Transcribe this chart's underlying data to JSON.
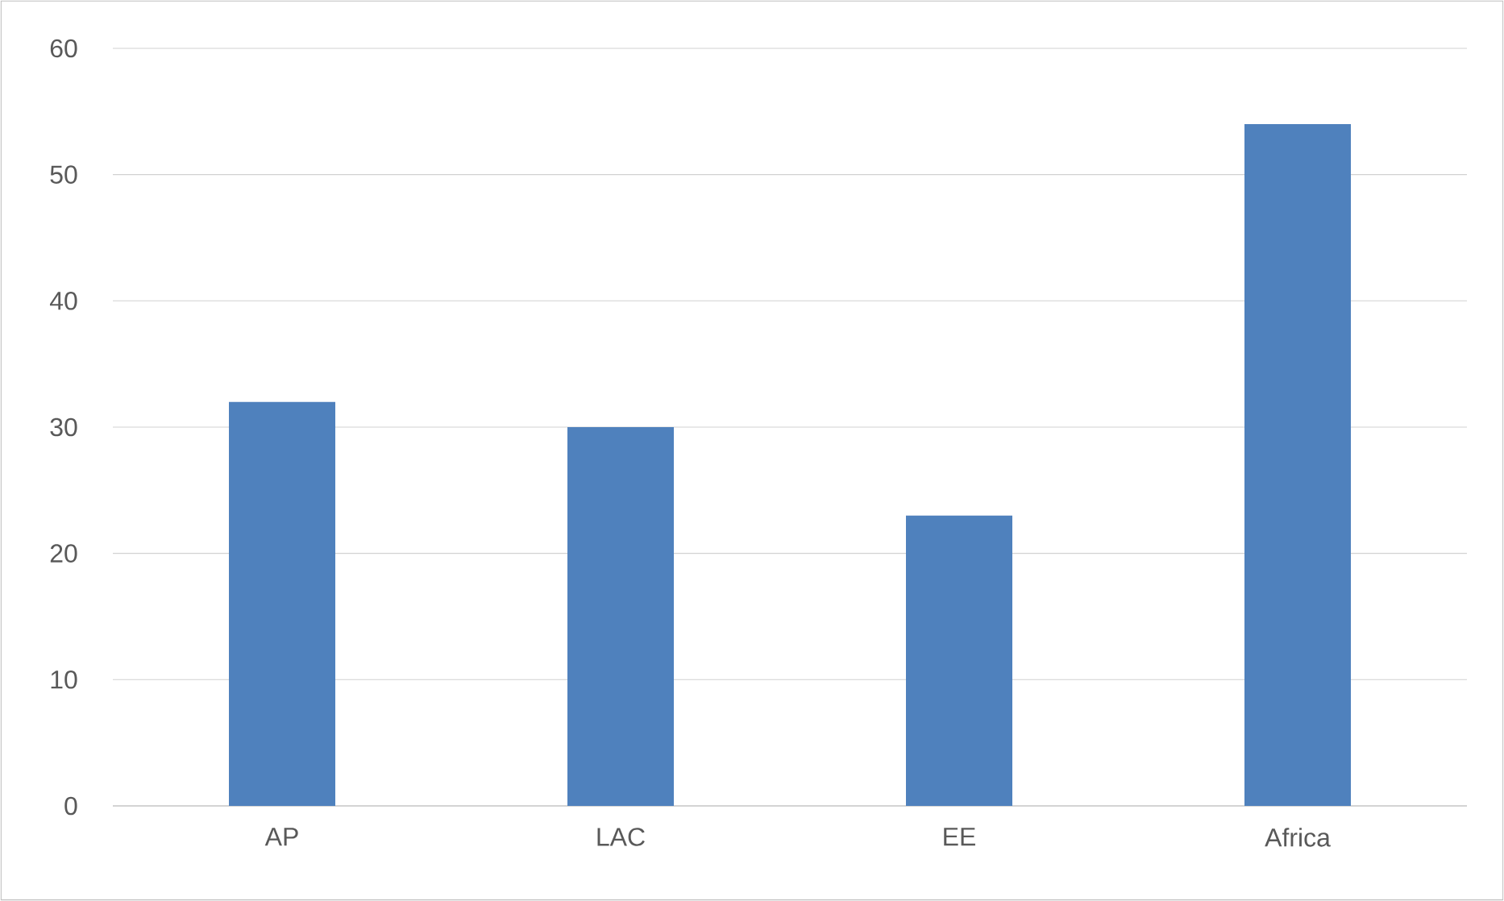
{
  "chart_data": {
    "type": "bar",
    "categories": [
      "AP",
      "LAC",
      "EE",
      "Africa"
    ],
    "values": [
      32,
      30,
      23,
      54
    ],
    "color": "#4f81bd",
    "ylim": [
      0,
      60
    ],
    "yticks": [
      0,
      10,
      20,
      30,
      40,
      50,
      60
    ],
    "grid": "y"
  }
}
